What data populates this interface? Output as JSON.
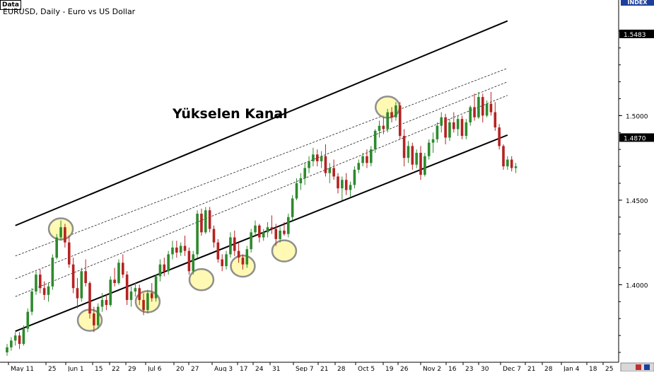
{
  "header": {
    "data_tag": "Data",
    "title": "EURUSD, Daily - Euro vs US Dollar",
    "index_tag": "INDEX"
  },
  "annotation": "Yükselen Kanal",
  "colors": {
    "up_candle": "#2d8a2d",
    "down_candle": "#b52222",
    "channel_line": "#000000",
    "highlight_fill": "#fff79a",
    "highlight_stroke": "#8f8f8f",
    "price_label_bg": "#000000",
    "price_label_text": "#ffffff"
  },
  "chart_data": {
    "type": "candlestick",
    "title": "EURUSD, Daily - Euro vs US Dollar",
    "ylim": [
      1.355,
      1.565
    ],
    "yticks": [
      1.4,
      1.45,
      1.5
    ],
    "price_labels": [
      "1.5483",
      "1.4870"
    ],
    "x_labels": [
      "May 11",
      "25",
      "Jun 1",
      "15",
      "22",
      "29",
      "Jul 6",
      "20",
      "27",
      "Aug 3",
      "17",
      "24",
      "31",
      "Sep 7",
      "21",
      "28",
      "Oct 5",
      "19",
      "26",
      "Nov 2",
      "16",
      "23",
      "30",
      "Dec 7",
      "21",
      "28",
      "Jan 4",
      "18",
      "25"
    ],
    "series": [
      {
        "ohlc": [
          [
            1.36,
            1.365,
            1.358,
            1.363
          ],
          [
            1.363,
            1.369,
            1.361,
            1.367
          ],
          [
            1.367,
            1.372,
            1.364,
            1.37
          ],
          [
            1.37,
            1.372,
            1.362,
            1.365
          ],
          [
            1.365,
            1.376,
            1.364,
            1.374
          ],
          [
            1.374,
            1.386,
            1.372,
            1.384
          ],
          [
            1.384,
            1.398,
            1.382,
            1.396
          ],
          [
            1.396,
            1.408,
            1.394,
            1.406
          ],
          [
            1.406,
            1.409,
            1.395,
            1.398
          ],
          [
            1.398,
            1.402,
            1.391,
            1.394
          ],
          [
            1.394,
            1.401,
            1.39,
            1.399
          ],
          [
            1.399,
            1.418,
            1.397,
            1.416
          ],
          [
            1.416,
            1.43,
            1.415,
            1.428
          ],
          [
            1.428,
            1.438,
            1.426,
            1.434
          ],
          [
            1.434,
            1.436,
            1.422,
            1.425
          ],
          [
            1.425,
            1.429,
            1.41,
            1.412
          ],
          [
            1.412,
            1.416,
            1.395,
            1.398
          ],
          [
            1.398,
            1.404,
            1.386,
            1.392
          ],
          [
            1.392,
            1.41,
            1.39,
            1.408
          ],
          [
            1.408,
            1.415,
            1.399,
            1.401
          ],
          [
            1.401,
            1.402,
            1.38,
            1.383
          ],
          [
            1.383,
            1.387,
            1.372,
            1.376
          ],
          [
            1.376,
            1.389,
            1.374,
            1.387
          ],
          [
            1.387,
            1.395,
            1.384,
            1.391
          ],
          [
            1.391,
            1.394,
            1.385,
            1.388
          ],
          [
            1.388,
            1.405,
            1.387,
            1.403
          ],
          [
            1.403,
            1.41,
            1.399,
            1.401
          ],
          [
            1.401,
            1.415,
            1.4,
            1.413
          ],
          [
            1.413,
            1.418,
            1.404,
            1.406
          ],
          [
            1.406,
            1.408,
            1.388,
            1.391
          ],
          [
            1.391,
            1.399,
            1.387,
            1.396
          ],
          [
            1.396,
            1.401,
            1.393,
            1.398
          ],
          [
            1.398,
            1.4,
            1.388,
            1.391
          ],
          [
            1.391,
            1.395,
            1.382,
            1.385
          ],
          [
            1.385,
            1.397,
            1.383,
            1.395
          ],
          [
            1.395,
            1.401,
            1.39,
            1.392
          ],
          [
            1.392,
            1.406,
            1.39,
            1.405
          ],
          [
            1.405,
            1.415,
            1.402,
            1.412
          ],
          [
            1.412,
            1.416,
            1.405,
            1.408
          ],
          [
            1.408,
            1.42,
            1.406,
            1.418
          ],
          [
            1.418,
            1.426,
            1.415,
            1.422
          ],
          [
            1.422,
            1.426,
            1.416,
            1.419
          ],
          [
            1.419,
            1.425,
            1.417,
            1.423
          ],
          [
            1.423,
            1.429,
            1.417,
            1.42
          ],
          [
            1.42,
            1.422,
            1.406,
            1.408
          ],
          [
            1.408,
            1.42,
            1.406,
            1.418
          ],
          [
            1.418,
            1.444,
            1.416,
            1.442
          ],
          [
            1.442,
            1.445,
            1.429,
            1.431
          ],
          [
            1.431,
            1.446,
            1.43,
            1.444
          ],
          [
            1.444,
            1.446,
            1.431,
            1.433
          ],
          [
            1.433,
            1.435,
            1.422,
            1.425
          ],
          [
            1.425,
            1.427,
            1.413,
            1.415
          ],
          [
            1.415,
            1.418,
            1.408,
            1.411
          ],
          [
            1.411,
            1.42,
            1.409,
            1.418
          ],
          [
            1.418,
            1.431,
            1.416,
            1.428
          ],
          [
            1.428,
            1.432,
            1.417,
            1.42
          ],
          [
            1.42,
            1.425,
            1.413,
            1.416
          ],
          [
            1.416,
            1.418,
            1.409,
            1.412
          ],
          [
            1.412,
            1.423,
            1.41,
            1.421
          ],
          [
            1.421,
            1.433,
            1.419,
            1.431
          ],
          [
            1.431,
            1.438,
            1.429,
            1.435
          ],
          [
            1.435,
            1.436,
            1.425,
            1.428
          ],
          [
            1.428,
            1.433,
            1.426,
            1.431
          ],
          [
            1.431,
            1.437,
            1.428,
            1.434
          ],
          [
            1.434,
            1.441,
            1.43,
            1.433
          ],
          [
            1.433,
            1.436,
            1.423,
            1.427
          ],
          [
            1.427,
            1.434,
            1.425,
            1.432
          ],
          [
            1.432,
            1.437,
            1.429,
            1.43
          ],
          [
            1.43,
            1.442,
            1.428,
            1.44
          ],
          [
            1.44,
            1.453,
            1.438,
            1.451
          ],
          [
            1.451,
            1.463,
            1.45,
            1.46
          ],
          [
            1.46,
            1.466,
            1.456,
            1.463
          ],
          [
            1.463,
            1.472,
            1.459,
            1.469
          ],
          [
            1.469,
            1.476,
            1.466,
            1.473
          ],
          [
            1.473,
            1.481,
            1.47,
            1.477
          ],
          [
            1.477,
            1.48,
            1.47,
            1.473
          ],
          [
            1.473,
            1.479,
            1.469,
            1.476
          ],
          [
            1.476,
            1.483,
            1.464,
            1.466
          ],
          [
            1.466,
            1.472,
            1.46,
            1.469
          ],
          [
            1.469,
            1.474,
            1.462,
            1.464
          ],
          [
            1.464,
            1.466,
            1.454,
            1.457
          ],
          [
            1.457,
            1.464,
            1.45,
            1.462
          ],
          [
            1.462,
            1.466,
            1.453,
            1.456
          ],
          [
            1.456,
            1.461,
            1.452,
            1.459
          ],
          [
            1.459,
            1.47,
            1.457,
            1.468
          ],
          [
            1.468,
            1.474,
            1.466,
            1.472
          ],
          [
            1.472,
            1.478,
            1.47,
            1.476
          ],
          [
            1.476,
            1.48,
            1.469,
            1.472
          ],
          [
            1.472,
            1.482,
            1.47,
            1.48
          ],
          [
            1.48,
            1.492,
            1.478,
            1.491
          ],
          [
            1.491,
            1.497,
            1.487,
            1.494
          ],
          [
            1.494,
            1.499,
            1.489,
            1.492
          ],
          [
            1.492,
            1.504,
            1.49,
            1.502
          ],
          [
            1.502,
            1.505,
            1.496,
            1.499
          ],
          [
            1.499,
            1.508,
            1.497,
            1.506
          ],
          [
            1.506,
            1.508,
            1.486,
            1.488
          ],
          [
            1.488,
            1.492,
            1.47,
            1.475
          ],
          [
            1.475,
            1.485,
            1.472,
            1.482
          ],
          [
            1.482,
            1.484,
            1.468,
            1.471
          ],
          [
            1.471,
            1.48,
            1.469,
            1.478
          ],
          [
            1.478,
            1.482,
            1.462,
            1.465
          ],
          [
            1.465,
            1.478,
            1.464,
            1.476
          ],
          [
            1.476,
            1.486,
            1.474,
            1.484
          ],
          [
            1.484,
            1.49,
            1.478,
            1.486
          ],
          [
            1.486,
            1.496,
            1.484,
            1.494
          ],
          [
            1.494,
            1.502,
            1.49,
            1.499
          ],
          [
            1.499,
            1.501,
            1.483,
            1.487
          ],
          [
            1.487,
            1.498,
            1.485,
            1.496
          ],
          [
            1.496,
            1.502,
            1.49,
            1.492
          ],
          [
            1.492,
            1.5,
            1.488,
            1.498
          ],
          [
            1.498,
            1.5,
            1.486,
            1.488
          ],
          [
            1.488,
            1.498,
            1.486,
            1.496
          ],
          [
            1.496,
            1.506,
            1.494,
            1.505
          ],
          [
            1.505,
            1.513,
            1.497,
            1.499
          ],
          [
            1.499,
            1.514,
            1.498,
            1.511
          ],
          [
            1.511,
            1.513,
            1.496,
            1.5
          ],
          [
            1.5,
            1.509,
            1.499,
            1.507
          ],
          [
            1.507,
            1.514,
            1.5,
            1.502
          ],
          [
            1.502,
            1.508,
            1.491,
            1.493
          ],
          [
            1.493,
            1.495,
            1.48,
            1.482
          ],
          [
            1.482,
            1.483,
            1.468,
            1.47
          ],
          [
            1.47,
            1.476,
            1.468,
            1.474
          ],
          [
            1.474,
            1.476,
            1.467,
            1.469
          ],
          [
            1.469,
            1.472,
            1.466,
            1.47
          ]
        ]
      }
    ],
    "channel": {
      "upper": {
        "from": [
          2,
          1.435
        ],
        "to": [
          121,
          1.556
        ]
      },
      "lower": {
        "from": [
          2,
          1.3725
        ],
        "to": [
          121,
          1.4885
        ]
      },
      "inner_dashed": [
        {
          "from": [
            2,
            1.417
          ],
          "to": [
            121,
            1.528
          ]
        },
        {
          "from": [
            2,
            1.4035
          ],
          "to": [
            121,
            1.52
          ]
        },
        {
          "from": [
            2,
            1.393
          ],
          "to": [
            121,
            1.512
          ]
        }
      ]
    },
    "touch_points": [
      [
        13,
        1.433
      ],
      [
        20,
        1.379
      ],
      [
        34,
        1.39
      ],
      [
        47,
        1.403
      ],
      [
        57,
        1.411
      ],
      [
        67,
        1.42
      ],
      [
        92,
        1.505
      ]
    ]
  }
}
